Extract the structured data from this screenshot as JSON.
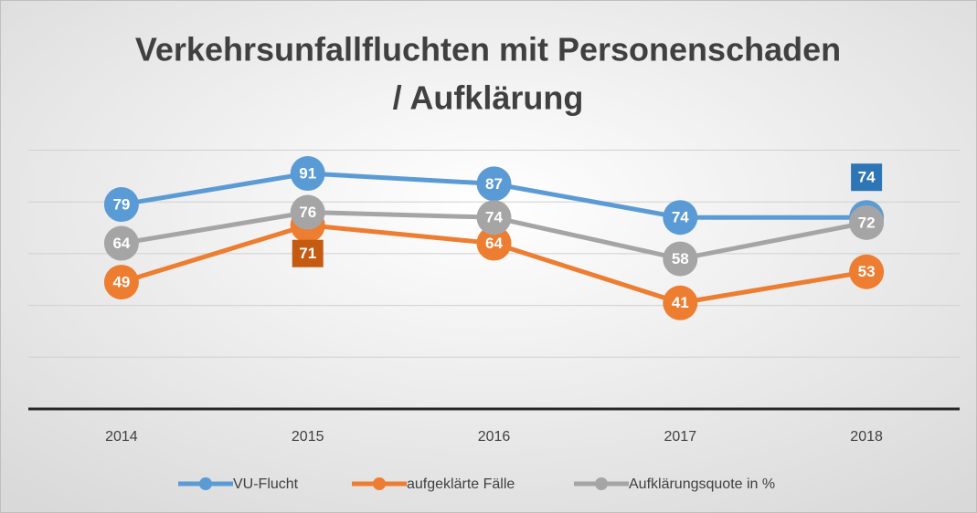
{
  "chart_data": {
    "type": "line",
    "title": [
      "Verkehrsunfallfluchten mit Personenschaden",
      "/ Aufklärung"
    ],
    "categories": [
      "2014",
      "2015",
      "2016",
      "2017",
      "2018"
    ],
    "series": [
      {
        "name": "VU-Flucht",
        "color": "#5b9bd5",
        "values": [
          79,
          91,
          87,
          74,
          74
        ]
      },
      {
        "name": "aufgeklärte Fälle",
        "color": "#ed7d31",
        "values": [
          49,
          71,
          64,
          41,
          53
        ]
      },
      {
        "name": "Aufklärungsquote in %",
        "color": "#a5a5a5",
        "values": [
          64,
          76,
          74,
          58,
          72
        ]
      }
    ],
    "ylim": [
      0,
      100
    ],
    "yticks": [
      0,
      20,
      40,
      60,
      80,
      100
    ],
    "grid": true,
    "legend": "bottom"
  }
}
